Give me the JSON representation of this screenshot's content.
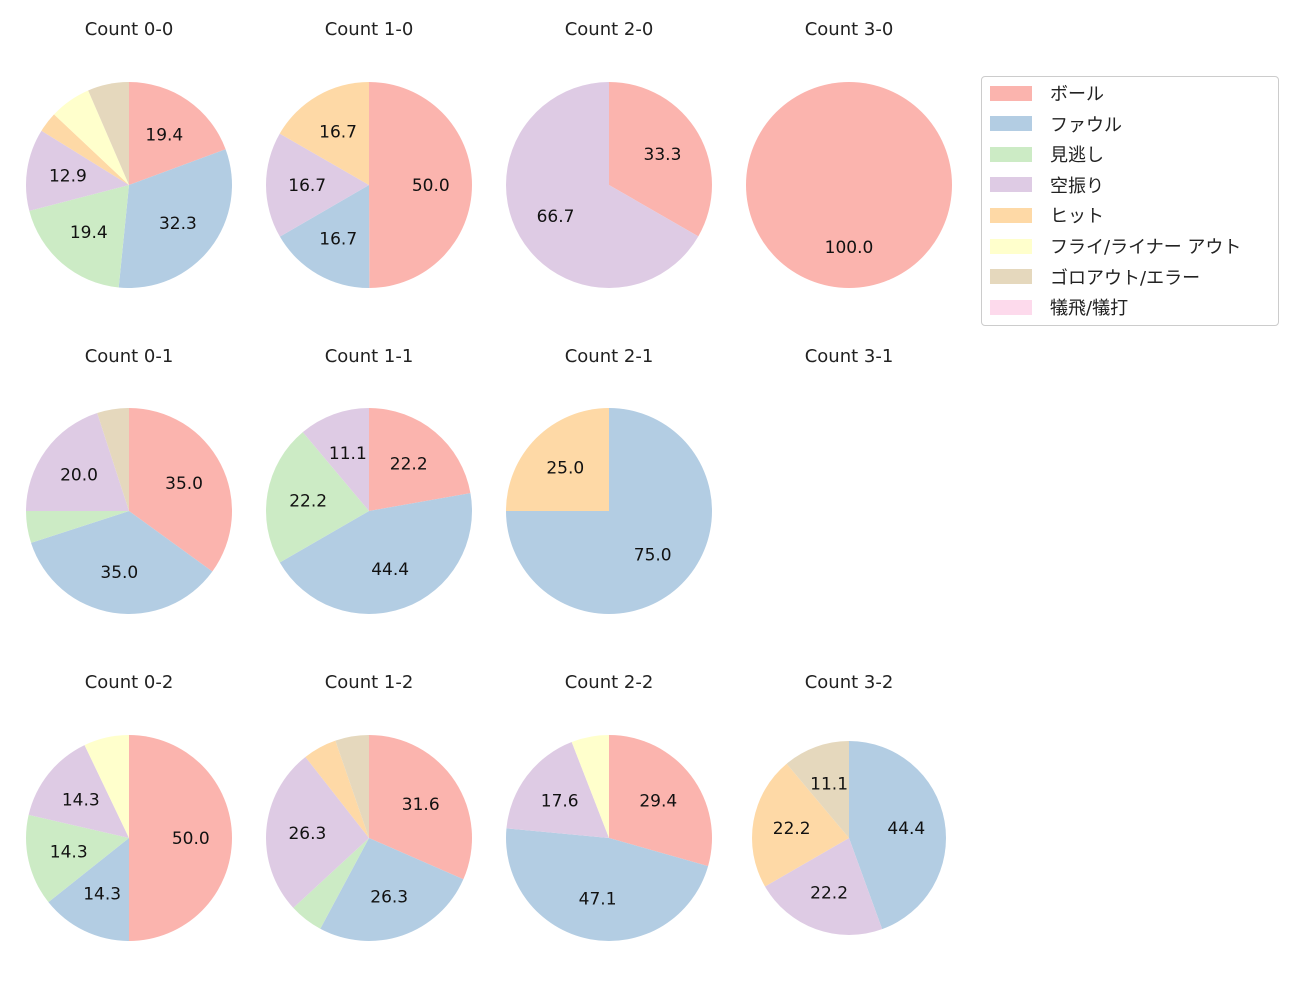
{
  "chart_data": {
    "type": "pie",
    "start_angle_deg": 90,
    "direction": "clockwise",
    "label_format": "percent, 1 decimal, shown for slices >= 10%",
    "categories": [
      "ボール",
      "ファウル",
      "見逃し",
      "空振り",
      "ヒット",
      "フライ/ライナー アウト",
      "ゴロアウト/エラー",
      "犠飛/犠打"
    ],
    "colors": [
      "#fbb4ae",
      "#b3cde3",
      "#ccebc5",
      "#decbe4",
      "#fed9a6",
      "#ffffcc",
      "#e5d8bd",
      "#fddaec"
    ],
    "legend_position": "right",
    "pies": [
      {
        "title": "Count 0-0",
        "values": [
          19.4,
          32.3,
          19.4,
          12.9,
          3.2,
          6.5,
          6.5,
          0
        ]
      },
      {
        "title": "Count 1-0",
        "values": [
          50.0,
          16.7,
          0,
          16.7,
          16.7,
          0,
          0,
          0
        ]
      },
      {
        "title": "Count 2-0",
        "values": [
          33.3,
          0,
          0,
          66.7,
          0,
          0,
          0,
          0
        ]
      },
      {
        "title": "Count 3-0",
        "values": [
          100.0,
          0,
          0,
          0,
          0,
          0,
          0,
          0
        ]
      },
      {
        "title": "Count 0-1",
        "values": [
          35.0,
          35.0,
          5.0,
          20.0,
          0,
          0,
          5.0,
          0
        ]
      },
      {
        "title": "Count 1-1",
        "values": [
          22.2,
          44.4,
          22.2,
          11.1,
          0,
          0,
          0,
          0
        ]
      },
      {
        "title": "Count 2-1",
        "values": [
          0,
          75.0,
          0,
          0,
          25.0,
          0,
          0,
          0
        ]
      },
      {
        "title": "Count 3-1",
        "values": []
      },
      {
        "title": "Count 0-2",
        "values": [
          50.0,
          14.3,
          14.3,
          14.3,
          0,
          7.1,
          0,
          0
        ]
      },
      {
        "title": "Count 1-2",
        "values": [
          31.6,
          26.3,
          5.3,
          26.3,
          5.3,
          0,
          5.3,
          0
        ]
      },
      {
        "title": "Count 2-2",
        "values": [
          29.4,
          47.1,
          0,
          17.6,
          0,
          5.9,
          0,
          0
        ]
      },
      {
        "title": "Count 3-2",
        "values": [
          0,
          44.4,
          0,
          22.2,
          22.2,
          0,
          11.1,
          0
        ]
      }
    ]
  }
}
